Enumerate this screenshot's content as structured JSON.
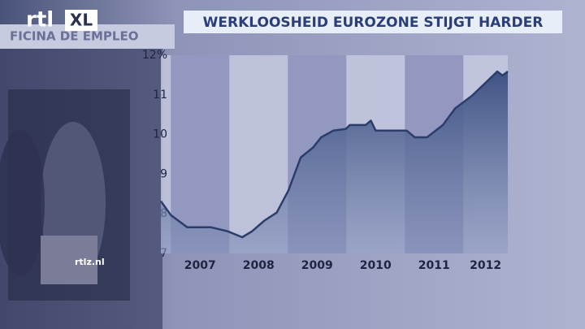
{
  "logo": [
    "rtl",
    "XL"
  ],
  "background_sign": "FICINA DE EMPLEO",
  "watermark": "rtlz.nl",
  "chart_data": {
    "type": "area",
    "title": "WERKLOOSHEID EUROZONE STIJGT HARDER",
    "categories": [
      "2007",
      "2008",
      "2009",
      "2010",
      "2011",
      "2012"
    ],
    "x": [
      2006.83,
      2007.0,
      2007.28,
      2007.69,
      2007.97,
      2008.22,
      2008.39,
      2008.6,
      2008.81,
      2009.01,
      2009.22,
      2009.43,
      2009.57,
      2009.78,
      2009.99,
      2010.06,
      2010.33,
      2010.42,
      2010.5,
      2011.03,
      2011.17,
      2011.38,
      2011.65,
      2011.86,
      2012.14,
      2012.39,
      2012.58,
      2012.67,
      2012.76
    ],
    "series": [
      {
        "name": "Werkloosheid eurozone",
        "color": "#2b3d6b",
        "values": [
          8.32,
          7.97,
          7.66,
          7.66,
          7.56,
          7.41,
          7.56,
          7.83,
          8.03,
          8.59,
          9.42,
          9.67,
          9.93,
          10.1,
          10.14,
          10.24,
          10.24,
          10.35,
          10.1,
          10.1,
          9.93,
          9.93,
          10.24,
          10.66,
          10.97,
          11.32,
          11.59,
          11.49,
          11.59
        ]
      }
    ],
    "xlim": [
      2006.83,
      2012.76
    ],
    "ylim": [
      7,
      12
    ],
    "yticks": [
      7,
      8,
      9,
      10,
      11,
      {
        "value": 12,
        "label": "12%"
      }
    ]
  }
}
